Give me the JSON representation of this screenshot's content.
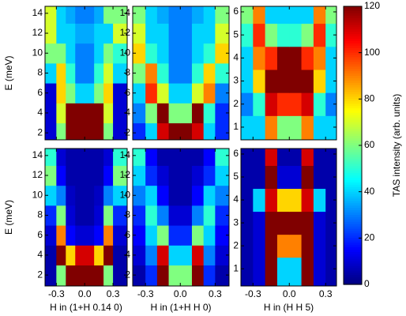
{
  "chart_data": [
    {
      "type": "heatmap",
      "ylabel": "E (meV)",
      "show_xtick_labels": false,
      "xlim": [
        -0.42,
        0.45
      ],
      "ylim": [
        1.3,
        14.7
      ],
      "xticks": [
        -0.3,
        {
          "value": 0,
          "label": "0.0"
        },
        0.3
      ],
      "yticks": [
        2,
        4,
        6,
        8,
        10,
        12,
        14
      ],
      "x": [
        -0.35,
        -0.25,
        -0.15,
        -0.05,
        0.05,
        0.15,
        0.25,
        0.35
      ],
      "y": [
        2,
        4,
        6,
        8,
        10,
        12,
        14
      ],
      "z": [
        [
          10,
          60,
          120,
          120,
          120,
          120,
          60,
          10
        ],
        [
          10,
          70,
          120,
          120,
          120,
          120,
          70,
          10
        ],
        [
          10,
          80,
          60,
          40,
          40,
          60,
          80,
          10
        ],
        [
          40,
          80,
          50,
          30,
          30,
          50,
          70,
          40
        ],
        [
          60,
          60,
          40,
          30,
          30,
          40,
          60,
          50
        ],
        [
          70,
          40,
          40,
          35,
          35,
          40,
          40,
          70
        ],
        [
          70,
          40,
          35,
          30,
          30,
          35,
          60,
          60
        ]
      ]
    },
    {
      "type": "heatmap",
      "show_xtick_labels": false,
      "xlim": [
        -0.41,
        0.42
      ],
      "ylim": [
        1.3,
        14.7
      ],
      "xticks": [
        -0.3,
        {
          "value": 0,
          "label": "0.0"
        },
        0.3
      ],
      "yticks": [
        2,
        4,
        6,
        8,
        10,
        12,
        14
      ],
      "x": [
        -0.35,
        -0.25,
        -0.15,
        -0.05,
        0.05,
        0.15,
        0.25,
        0.35
      ],
      "y": [
        2,
        4,
        6,
        8,
        10,
        12,
        14
      ],
      "z": [
        [
          20,
          40,
          110,
          120,
          120,
          110,
          40,
          20
        ],
        [
          30,
          60,
          120,
          60,
          60,
          120,
          50,
          20
        ],
        [
          40,
          100,
          70,
          40,
          40,
          70,
          90,
          30
        ],
        [
          60,
          90,
          50,
          30,
          30,
          50,
          80,
          50
        ],
        [
          80,
          50,
          40,
          30,
          30,
          40,
          50,
          80
        ],
        [
          70,
          40,
          40,
          30,
          30,
          40,
          40,
          70
        ],
        [
          60,
          40,
          35,
          30,
          30,
          35,
          40,
          60
        ]
      ]
    },
    {
      "type": "heatmap",
      "show_xtick_labels": false,
      "xlim": [
        -0.4,
        0.39
      ],
      "ylim": [
        0.45,
        6.24
      ],
      "xticks": [
        -0.3,
        {
          "value": 0,
          "label": "0.0"
        },
        0.3
      ],
      "yticks": [
        1,
        2,
        3,
        4,
        5,
        6
      ],
      "x": [
        -0.35,
        -0.25,
        -0.15,
        -0.05,
        0.05,
        0.15,
        0.25,
        0.35
      ],
      "y": [
        1,
        2,
        3,
        4,
        5,
        6
      ],
      "z": [
        [
          40,
          40,
          90,
          60,
          60,
          90,
          40,
          40
        ],
        [
          30,
          50,
          110,
          100,
          100,
          110,
          50,
          30
        ],
        [
          40,
          80,
          120,
          120,
          120,
          120,
          80,
          40
        ],
        [
          40,
          90,
          100,
          120,
          120,
          100,
          90,
          40
        ],
        [
          50,
          100,
          60,
          50,
          50,
          60,
          100,
          50
        ],
        [
          60,
          90,
          40,
          40,
          40,
          40,
          90,
          60
        ]
      ]
    },
    {
      "type": "heatmap",
      "ylabel": "E (meV)",
      "xlabel": "H in (1+H 0.14 0)",
      "show_xtick_labels": true,
      "xlim": [
        -0.42,
        0.45
      ],
      "ylim": [
        0.9,
        14.7
      ],
      "xticks": [
        -0.3,
        {
          "value": 0,
          "label": "0.0"
        },
        0.3
      ],
      "yticks": [
        2,
        4,
        6,
        8,
        10,
        12,
        14
      ],
      "x": [
        -0.35,
        -0.25,
        -0.15,
        -0.05,
        0.05,
        0.15,
        0.25,
        0.35
      ],
      "y": [
        2,
        4,
        6,
        8,
        10,
        12,
        14
      ],
      "z": [
        [
          5,
          60,
          120,
          120,
          120,
          120,
          60,
          5
        ],
        [
          5,
          120,
          80,
          110,
          110,
          80,
          120,
          5
        ],
        [
          10,
          90,
          15,
          10,
          10,
          15,
          90,
          10
        ],
        [
          20,
          60,
          10,
          5,
          5,
          10,
          60,
          20
        ],
        [
          40,
          30,
          8,
          5,
          5,
          8,
          30,
          40
        ],
        [
          60,
          15,
          5,
          5,
          5,
          5,
          15,
          60
        ],
        [
          50,
          10,
          5,
          5,
          5,
          5,
          10,
          50
        ]
      ]
    },
    {
      "type": "heatmap",
      "xlabel": "H in (1+H H 0)",
      "show_xtick_labels": true,
      "xlim": [
        -0.41,
        0.42
      ],
      "ylim": [
        0.9,
        14.7
      ],
      "xticks": [
        -0.3,
        {
          "value": 0,
          "label": "0.0"
        },
        0.3
      ],
      "yticks": [
        2,
        4,
        6,
        8,
        10,
        12,
        14
      ],
      "x": [
        -0.35,
        -0.25,
        -0.15,
        -0.05,
        0.05,
        0.15,
        0.25,
        0.35
      ],
      "y": [
        2,
        4,
        6,
        8,
        10,
        12,
        14
      ],
      "z": [
        [
          5,
          20,
          120,
          60,
          60,
          120,
          20,
          5
        ],
        [
          10,
          30,
          110,
          40,
          40,
          110,
          30,
          10
        ],
        [
          15,
          40,
          60,
          20,
          20,
          60,
          40,
          15
        ],
        [
          20,
          50,
          30,
          10,
          10,
          30,
          50,
          20
        ],
        [
          30,
          40,
          15,
          5,
          5,
          15,
          40,
          30
        ],
        [
          40,
          20,
          10,
          5,
          5,
          10,
          20,
          40
        ],
        [
          50,
          15,
          5,
          5,
          5,
          5,
          15,
          50
        ]
      ]
    },
    {
      "type": "heatmap",
      "xlabel": "H in (H H 5)",
      "show_xtick_labels": true,
      "xlim": [
        -0.4,
        0.39
      ],
      "ylim": [
        0.25,
        6.24
      ],
      "xticks": [
        -0.3,
        {
          "value": 0,
          "label": "0.0"
        },
        0.3
      ],
      "yticks": [
        1,
        2,
        3,
        4,
        5,
        6
      ],
      "x": [
        -0.35,
        -0.25,
        -0.15,
        -0.05,
        0.05,
        0.15,
        0.25,
        0.35
      ],
      "y": [
        1,
        2,
        3,
        4,
        5,
        6
      ],
      "z": [
        [
          5,
          10,
          120,
          40,
          40,
          120,
          10,
          5
        ],
        [
          5,
          10,
          120,
          90,
          90,
          120,
          10,
          5
        ],
        [
          5,
          10,
          120,
          120,
          120,
          120,
          10,
          5
        ],
        [
          5,
          40,
          110,
          80,
          80,
          110,
          40,
          5
        ],
        [
          5,
          5,
          120,
          10,
          10,
          120,
          5,
          5
        ],
        [
          5,
          5,
          110,
          5,
          5,
          110,
          5,
          5
        ]
      ]
    },
    {
      "type": "colorbar",
      "label": "TAS intensity (arb. units)",
      "lim": [
        0,
        120
      ],
      "ticks": [
        0,
        20,
        40,
        60,
        80,
        100,
        120
      ]
    }
  ]
}
